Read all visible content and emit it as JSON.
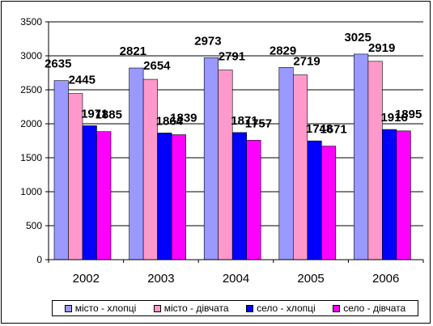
{
  "chart_data": {
    "type": "bar",
    "categories": [
      "2002",
      "2003",
      "2004",
      "2005",
      "2006"
    ],
    "series": [
      {
        "name": "місто - хлопці",
        "values": [
          2635,
          2821,
          2973,
          2829,
          3025
        ],
        "color": "#9999ff"
      },
      {
        "name": "місто - дівчата",
        "values": [
          2445,
          2654,
          2791,
          2719,
          2919
        ],
        "color": "#ff99cc"
      },
      {
        "name": "село - хлопці",
        "values": [
          1971,
          1864,
          1871,
          1748,
          1916
        ],
        "color": "#0000ff"
      },
      {
        "name": "село - дівчата",
        "values": [
          1885,
          1839,
          1757,
          1671,
          1895
        ],
        "color": "#ff00ff"
      }
    ],
    "yticks": [
      "0",
      "500",
      "1000",
      "1500",
      "2000",
      "2500",
      "3000",
      "3500"
    ],
    "ylim": [
      0,
      3500
    ],
    "title": "",
    "xlabel": "",
    "ylabel": "",
    "grid": true,
    "legend_position": "bottom"
  }
}
